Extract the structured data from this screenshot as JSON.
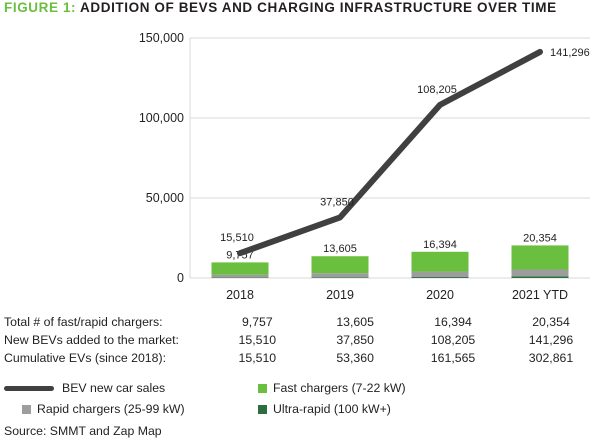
{
  "title": {
    "prefix": "FIGURE 1:",
    "text": "ADDITION OF BEVS AND CHARGING INFRASTRUCTURE OVER TIME"
  },
  "colors": {
    "fast": "#6abf3f",
    "rapid": "#9d9d9d",
    "ultra": "#2d6e3e",
    "line": "#404040",
    "grid": "#d9d9d9",
    "title_accent": "#6abf3f"
  },
  "chart_data": {
    "type": "bar",
    "categories": [
      "2018",
      "2019",
      "2020",
      "2021 YTD"
    ],
    "ylim": [
      0,
      150000
    ],
    "yticks": [
      0,
      50000,
      100000,
      150000
    ],
    "ytick_labels": [
      "0",
      "50,000",
      "100,000",
      "150,000"
    ],
    "bar_labels": [
      "9,757",
      "13,605",
      "16,394",
      "20,354"
    ],
    "bar_series": [
      {
        "name": "Ultra-rapid (100 kW+)",
        "color": "#2d6e3e",
        "values": [
          250,
          400,
          600,
          1000
        ]
      },
      {
        "name": "Rapid chargers (25-99 kW)",
        "color": "#9d9d9d",
        "values": [
          1850,
          2600,
          3400,
          4300
        ]
      },
      {
        "name": "Fast chargers (7-22 kW)",
        "color": "#6abf3f",
        "values": [
          7657,
          10605,
          12394,
          15054
        ]
      }
    ],
    "line_series": {
      "name": "BEV new car sales",
      "values": [
        15510,
        37850,
        108205,
        141296
      ],
      "labels": [
        "15,510",
        "37,850",
        "108,205",
        "141,296"
      ]
    }
  },
  "table": {
    "rows": [
      {
        "label": "Total # of fast/rapid chargers:",
        "values": [
          "9,757",
          "13,605",
          "16,394",
          "20,354"
        ]
      },
      {
        "label": "New BEVs added to the market:",
        "values": [
          "15,510",
          "37,850",
          "108,205",
          "141,296"
        ]
      },
      {
        "label": "Cumulative EVs (since 2018):",
        "values": [
          "15,510",
          "53,360",
          "161,565",
          "302,861"
        ]
      }
    ]
  },
  "legend": {
    "line": "BEV new car sales",
    "fast": "Fast chargers (7-22 kW)",
    "rapid": "Rapid chargers (25-99 kW)",
    "ultra": "Ultra-rapid (100 kW+)"
  },
  "source": "Source: SMMT and Zap Map"
}
